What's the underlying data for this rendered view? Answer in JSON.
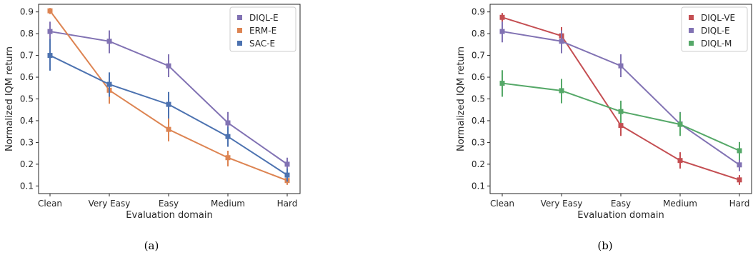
{
  "chart_data": [
    {
      "type": "line",
      "caption": "(a)",
      "xlabel": "Evaluation domain",
      "ylabel": "Normalized IQM return",
      "categories": [
        "Clean",
        "Very Easy",
        "Easy",
        "Medium",
        "Hard"
      ],
      "ylim": [
        0.065,
        0.935
      ],
      "yticks": [
        "0.1",
        "0.2",
        "0.3",
        "0.4",
        "0.5",
        "0.6",
        "0.7",
        "0.8",
        "0.9"
      ],
      "legend_position": "top-right",
      "series": [
        {
          "name": "DIQL-E",
          "color": "#8172b3",
          "values": [
            0.81,
            0.765,
            0.652,
            0.39,
            0.2
          ],
          "err_low": [
            0.76,
            0.71,
            0.6,
            0.34,
            0.165
          ],
          "err_high": [
            0.855,
            0.815,
            0.705,
            0.44,
            0.23
          ]
        },
        {
          "name": "ERM-E",
          "color": "#dd8452",
          "values": [
            0.905,
            0.54,
            0.36,
            0.23,
            0.125
          ],
          "err_low": [
            0.89,
            0.478,
            0.305,
            0.19,
            0.105
          ],
          "err_high": [
            0.918,
            0.6,
            0.41,
            0.262,
            0.14
          ]
        },
        {
          "name": "SAC-E",
          "color": "#4c72b0",
          "values": [
            0.7,
            0.567,
            0.475,
            0.327,
            0.15
          ],
          "err_low": [
            0.63,
            0.51,
            0.41,
            0.28,
            0.12
          ],
          "err_high": [
            0.775,
            0.622,
            0.532,
            0.372,
            0.18
          ]
        }
      ]
    },
    {
      "type": "line",
      "caption": "(b)",
      "xlabel": "Evaluation domain",
      "ylabel": "Normalized IQM return",
      "categories": [
        "Clean",
        "Very Easy",
        "Easy",
        "Medium",
        "Hard"
      ],
      "ylim": [
        0.065,
        0.935
      ],
      "yticks": [
        "0.1",
        "0.2",
        "0.3",
        "0.4",
        "0.5",
        "0.6",
        "0.7",
        "0.8",
        "0.9"
      ],
      "legend_position": "top-right",
      "series": [
        {
          "name": "DIQL-VE",
          "color": "#c44e52",
          "values": [
            0.875,
            0.79,
            0.378,
            0.217,
            0.128
          ],
          "err_low": [
            0.855,
            0.75,
            0.33,
            0.18,
            0.105
          ],
          "err_high": [
            0.895,
            0.83,
            0.42,
            0.255,
            0.15
          ]
        },
        {
          "name": "DIQL-E",
          "color": "#8172b3",
          "values": [
            0.81,
            0.765,
            0.652,
            0.385,
            0.197
          ],
          "err_low": [
            0.76,
            0.71,
            0.6,
            0.335,
            0.168
          ],
          "err_high": [
            0.855,
            0.815,
            0.705,
            0.44,
            0.23
          ]
        },
        {
          "name": "DIQL-M",
          "color": "#55a868",
          "values": [
            0.572,
            0.538,
            0.442,
            0.383,
            0.262
          ],
          "err_low": [
            0.51,
            0.48,
            0.39,
            0.33,
            0.22
          ],
          "err_high": [
            0.632,
            0.592,
            0.492,
            0.438,
            0.302
          ]
        }
      ]
    }
  ]
}
